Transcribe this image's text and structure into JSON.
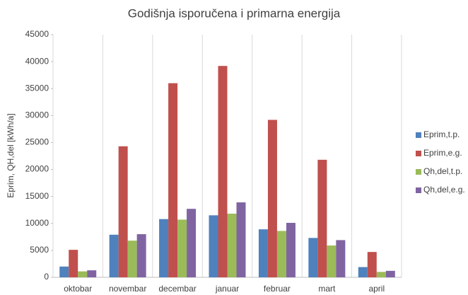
{
  "chart_data": {
    "type": "bar",
    "title": "Godišnja isporučena i primarna energija",
    "y_label": "Eprim, QH,del [kWh/a]",
    "categories": [
      "oktobar",
      "novembar",
      "decembar",
      "januar",
      "februar",
      "mart",
      "april"
    ],
    "series": [
      {
        "name": "Eprim,t.p.",
        "color": "#4f81bd",
        "values": [
          2000,
          7900,
          10800,
          11500,
          8900,
          7300,
          1900
        ]
      },
      {
        "name": "Eprim,e.g.",
        "color": "#c0504d",
        "values": [
          5100,
          24300,
          36000,
          39200,
          29200,
          21800,
          4700
        ]
      },
      {
        "name": "Qh,del,t.p.",
        "color": "#9bbb59",
        "values": [
          1100,
          6800,
          10700,
          11800,
          8600,
          5900,
          1000
        ]
      },
      {
        "name": "Qh,del,e.g.",
        "color": "#8064a2",
        "values": [
          1300,
          8000,
          12700,
          13900,
          10100,
          6900,
          1200
        ]
      }
    ],
    "ylim": [
      0,
      45000
    ],
    "yticks": [
      0,
      5000,
      10000,
      15000,
      20000,
      25000,
      30000,
      35000,
      40000,
      45000
    ],
    "legend": "right"
  }
}
